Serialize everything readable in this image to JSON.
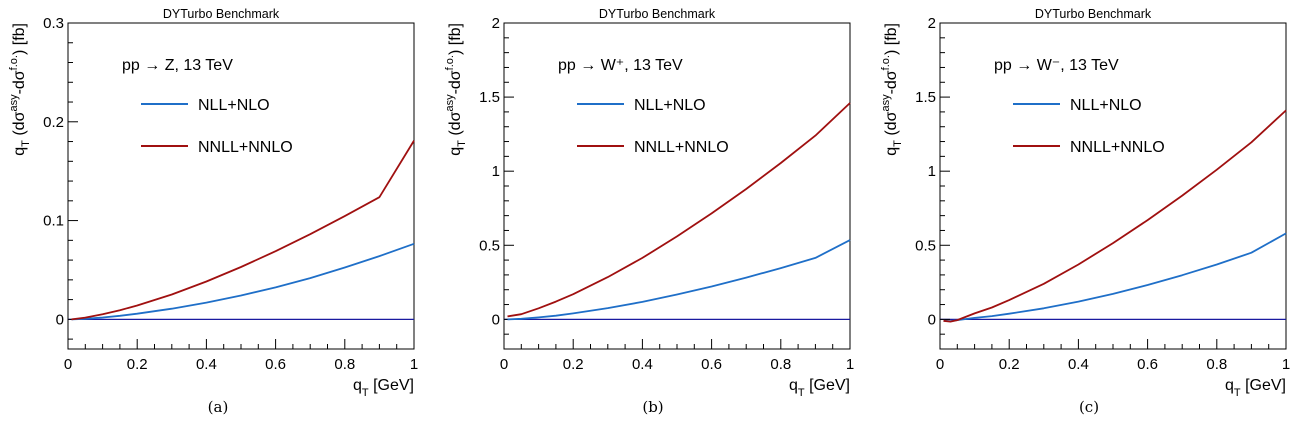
{
  "colors": {
    "nll_nlo": "#1f6fc8",
    "nnll_nnlo": "#a01010",
    "zero_line": "#1a1aa0",
    "axis": "#000000"
  },
  "chart_data": [
    {
      "type": "line",
      "title": "DYTurbo Benchmark",
      "process": "pp → Z, 13 TeV",
      "xlabel": "q_T [GeV]",
      "ylabel": "q_T (dσ^asy-dσ^f.o.) [fb]",
      "caption": "(a)",
      "xlim": [
        0,
        1
      ],
      "ylim": [
        -0.03,
        0.3
      ],
      "x_ticks": [
        "0",
        "0.2",
        "0.4",
        "0.6",
        "0.8",
        "1"
      ],
      "y_ticks": [
        "0",
        "0.1",
        "0.2",
        "0.3"
      ],
      "y_tick_values": [
        0,
        0.1,
        0.2,
        0.3
      ],
      "grid": false,
      "legend_placement": "upper-left",
      "series": [
        {
          "name": "NLL+NLO",
          "color": "#1f6fc8",
          "x": [
            0.01,
            0.05,
            0.1,
            0.15,
            0.2,
            0.3,
            0.4,
            0.5,
            0.6,
            0.7,
            0.8,
            0.9,
            1.0
          ],
          "values": [
            0.0,
            0.0006,
            0.0019,
            0.0036,
            0.0057,
            0.0108,
            0.017,
            0.0242,
            0.0324,
            0.0418,
            0.0525,
            0.064,
            0.0765
          ]
        },
        {
          "name": "NNLL+NNLO",
          "color": "#a01010",
          "x": [
            0.01,
            0.05,
            0.1,
            0.15,
            0.2,
            0.3,
            0.4,
            0.5,
            0.6,
            0.7,
            0.8,
            0.9,
            1.0
          ],
          "values": [
            0.0,
            0.0018,
            0.0052,
            0.0093,
            0.014,
            0.0252,
            0.0383,
            0.053,
            0.069,
            0.0862,
            0.1045,
            0.1237,
            0.181
          ]
        }
      ]
    },
    {
      "type": "line",
      "title": "DYTurbo Benchmark",
      "process": "pp → W⁺, 13 TeV",
      "xlabel": "q_T [GeV]",
      "ylabel": "q_T (dσ^asy-dσ^f.o.) [fb]",
      "caption": "(b)",
      "xlim": [
        0,
        1
      ],
      "ylim": [
        -0.2,
        2.0
      ],
      "x_ticks": [
        "0",
        "0.2",
        "0.4",
        "0.6",
        "0.8",
        "1"
      ],
      "y_ticks": [
        "0",
        "0.5",
        "1",
        "1.5",
        "2"
      ],
      "y_tick_values": [
        0,
        0.5,
        1,
        1.5,
        2
      ],
      "grid": false,
      "legend_placement": "upper-left",
      "series": [
        {
          "name": "NLL+NLO",
          "color": "#1f6fc8",
          "x": [
            0.01,
            0.05,
            0.1,
            0.15,
            0.2,
            0.3,
            0.4,
            0.5,
            0.6,
            0.7,
            0.8,
            0.9,
            1.0
          ],
          "values": [
            0.0,
            0.004,
            0.013,
            0.025,
            0.04,
            0.076,
            0.118,
            0.168,
            0.222,
            0.282,
            0.346,
            0.415,
            0.535
          ]
        },
        {
          "name": "NNLL+NNLO",
          "color": "#a01010",
          "x": [
            0.01,
            0.05,
            0.1,
            0.15,
            0.2,
            0.3,
            0.4,
            0.5,
            0.6,
            0.7,
            0.8,
            0.9,
            1.0
          ],
          "values": [
            0.02,
            0.035,
            0.075,
            0.12,
            0.17,
            0.285,
            0.415,
            0.56,
            0.715,
            0.88,
            1.055,
            1.24,
            1.46
          ]
        }
      ]
    },
    {
      "type": "line",
      "title": "DYTurbo Benchmark",
      "process": "pp → W⁻, 13 TeV",
      "xlabel": "q_T [GeV]",
      "ylabel": "q_T (dσ^asy-dσ^f.o.) [fb]",
      "caption": "(c)",
      "xlim": [
        0,
        1
      ],
      "ylim": [
        -0.2,
        2.0
      ],
      "x_ticks": [
        "0",
        "0.2",
        "0.4",
        "0.6",
        "0.8",
        "1"
      ],
      "y_ticks": [
        "0",
        "0.5",
        "1",
        "1.5",
        "2"
      ],
      "y_tick_values": [
        0,
        0.5,
        1,
        1.5,
        2
      ],
      "grid": false,
      "legend_placement": "upper-left",
      "series": [
        {
          "name": "NLL+NLO",
          "color": "#1f6fc8",
          "x": [
            0.01,
            0.03,
            0.05,
            0.1,
            0.15,
            0.2,
            0.3,
            0.4,
            0.5,
            0.6,
            0.7,
            0.8,
            0.9,
            1.0
          ],
          "values": [
            -0.01,
            -0.012,
            -0.005,
            0.01,
            0.022,
            0.038,
            0.075,
            0.12,
            0.172,
            0.232,
            0.298,
            0.37,
            0.45,
            0.58
          ]
        },
        {
          "name": "NNLL+NNLO",
          "color": "#a01010",
          "x": [
            0.01,
            0.03,
            0.05,
            0.1,
            0.15,
            0.2,
            0.3,
            0.4,
            0.5,
            0.6,
            0.7,
            0.8,
            0.9,
            1.0
          ],
          "values": [
            -0.01,
            -0.015,
            -0.005,
            0.04,
            0.08,
            0.13,
            0.24,
            0.37,
            0.515,
            0.67,
            0.835,
            1.01,
            1.195,
            1.41
          ]
        }
      ]
    }
  ]
}
